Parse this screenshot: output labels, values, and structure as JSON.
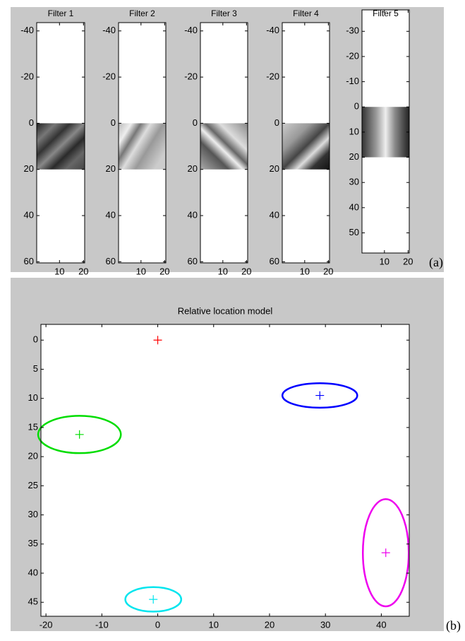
{
  "panel_labels": [
    "(a)",
    "(b)"
  ],
  "chart_data": [
    {
      "type": "image",
      "title": "Filter 1",
      "colormap": "gray",
      "y_reversed": true,
      "xlim": [
        0.5,
        20.5
      ],
      "ylim": [
        -43.6,
        60.5
      ],
      "xticks": [
        10,
        20
      ],
      "yticks": [
        -40,
        -20,
        0,
        20,
        40,
        60
      ],
      "image_extent_x": [
        0.5,
        20.5
      ],
      "image_extent_y": [
        0,
        20
      ]
    },
    {
      "type": "image",
      "title": "Filter 2",
      "colormap": "gray",
      "y_reversed": true,
      "xlim": [
        0.5,
        20.5
      ],
      "ylim": [
        -43.6,
        60.5
      ],
      "xticks": [
        10,
        20
      ],
      "yticks": [
        -40,
        -20,
        0,
        20,
        40,
        60
      ],
      "image_extent_x": [
        0.5,
        20.5
      ],
      "image_extent_y": [
        0,
        20
      ]
    },
    {
      "type": "image",
      "title": "Filter 3",
      "colormap": "gray",
      "y_reversed": true,
      "xlim": [
        0.5,
        20.5
      ],
      "ylim": [
        -43.6,
        60.5
      ],
      "xticks": [
        10,
        20
      ],
      "yticks": [
        -40,
        -20,
        0,
        20,
        40,
        60
      ],
      "image_extent_x": [
        0.5,
        20.5
      ],
      "image_extent_y": [
        0,
        20
      ]
    },
    {
      "type": "image",
      "title": "Filter 4",
      "colormap": "gray",
      "y_reversed": true,
      "xlim": [
        0.5,
        20.5
      ],
      "ylim": [
        -43.6,
        60.5
      ],
      "xticks": [
        10,
        20
      ],
      "yticks": [
        -40,
        -20,
        0,
        20,
        40,
        60
      ],
      "image_extent_x": [
        0.5,
        20.5
      ],
      "image_extent_y": [
        0,
        20
      ]
    },
    {
      "type": "image",
      "title": "Filter 5",
      "colormap": "gray",
      "y_reversed": true,
      "xlim": [
        0.5,
        20.5
      ],
      "ylim": [
        -38.5,
        58
      ],
      "xticks": [
        10,
        20
      ],
      "yticks": [
        -30,
        -20,
        -10,
        0,
        10,
        20,
        30,
        40,
        50
      ],
      "image_extent_x": [
        0.5,
        20.5
      ],
      "image_extent_y": [
        0,
        20
      ]
    },
    {
      "type": "scatter",
      "title": "Relative location model",
      "marker": "+",
      "y_reversed": true,
      "xlim": [
        -20.9,
        45
      ],
      "ylim": [
        -2.7,
        47.4
      ],
      "xticks": [
        -20,
        -10,
        0,
        10,
        20,
        30,
        40
      ],
      "yticks": [
        0,
        5,
        10,
        15,
        20,
        25,
        30,
        35,
        40,
        45
      ],
      "points": [
        {
          "color": "#ff0000",
          "x": 0,
          "y": 0
        },
        {
          "color": "#0000ff",
          "x": 29,
          "y": 9.5,
          "rx": 6.7,
          "ry": 2.1
        },
        {
          "color": "#00dd00",
          "x": -14,
          "y": 16.2,
          "rx": 7.4,
          "ry": 3.2
        },
        {
          "color": "#00e5ee",
          "x": -0.8,
          "y": 44.5,
          "rx": 5.0,
          "ry": 2.1
        },
        {
          "color": "#ee00ee",
          "x": 40.8,
          "y": 36.5,
          "rx": 4.1,
          "ry": 9.2
        }
      ]
    }
  ]
}
